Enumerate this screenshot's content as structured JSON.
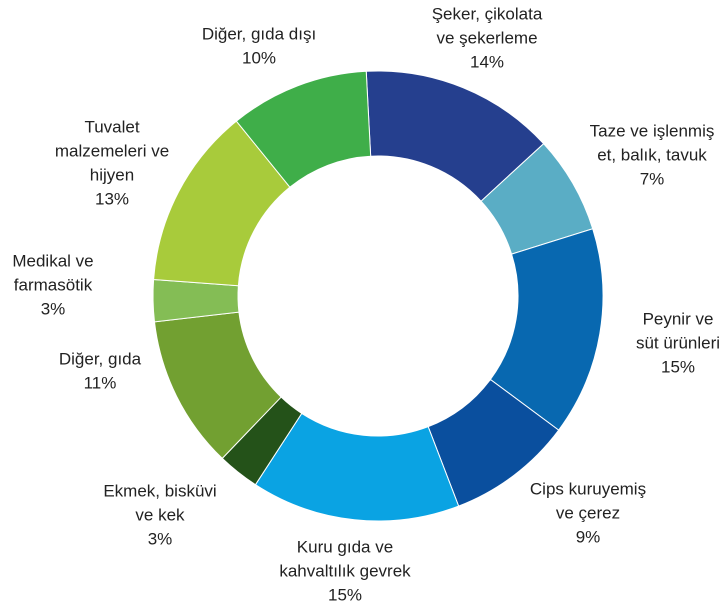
{
  "chart_data": {
    "type": "donut",
    "categories": [
      [
        "Şeker, çikolata",
        "ve şekerleme"
      ],
      [
        "Taze ve işlenmiş",
        "et, balık, tavuk"
      ],
      [
        "Peynir ve",
        "süt ürünleri"
      ],
      [
        "Cips kuruyemiş",
        "ve çerez"
      ],
      [
        "Kuru gıda ve",
        "kahvaltılık gevrek"
      ],
      [
        "Ekmek, bisküvi",
        "ve kek"
      ],
      [
        "Diğer, gıda"
      ],
      [
        "Medikal ve",
        "farmasötik"
      ],
      [
        "Tuvalet",
        "malzemeleri ve",
        "hijyen"
      ],
      [
        "Diğer, gıda dışı"
      ]
    ],
    "values": [
      14,
      7,
      15,
      9,
      15,
      3,
      11,
      3,
      13,
      10
    ],
    "value_labels": [
      "14%",
      "7%",
      "15%",
      "9%",
      "15%",
      "3%",
      "11%",
      "3%",
      "13%",
      "10%"
    ],
    "colors": [
      "#253f8e",
      "#5aadc5",
      "#0868b0",
      "#0a4f9e",
      "#0aa3e3",
      "#245219",
      "#72a031",
      "#84bd55",
      "#a8cb3b",
      "#3fae49"
    ]
  }
}
